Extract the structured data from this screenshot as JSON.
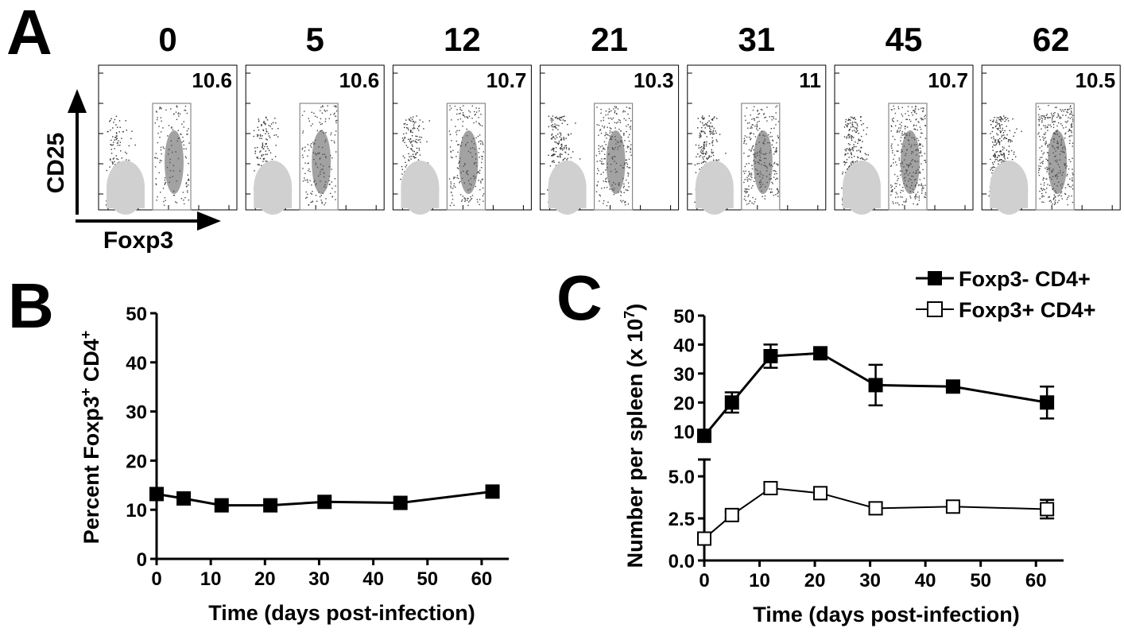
{
  "panel_a": {
    "label": "A",
    "timepoints": [
      "0",
      "5",
      "12",
      "21",
      "31",
      "45",
      "62"
    ],
    "gate_percents": [
      "10.6",
      "10.6",
      "10.7",
      "10.3",
      "11",
      "10.7",
      "10.5"
    ],
    "y_axis_label": "CD25",
    "x_axis_label": "Foxp3"
  },
  "panel_b": {
    "label": "B"
  },
  "panel_c": {
    "label": "C"
  },
  "chart_data": [
    {
      "type": "line",
      "panel": "B",
      "xlabel": "Time (days post-infection)",
      "ylabel_text": "Percent Foxp3",
      "ylabel_sup1": "+",
      "ylabel_text2": " CD4",
      "ylabel_sup2": "+",
      "xlim": [
        0,
        65
      ],
      "ylim": [
        0,
        50
      ],
      "xticks": [
        0,
        10,
        20,
        30,
        40,
        50,
        60
      ],
      "yticks": [
        0,
        10,
        20,
        30,
        40,
        50
      ],
      "series": [
        {
          "marker": "filled-square",
          "x": [
            0,
            5,
            12,
            21,
            31,
            45,
            62
          ],
          "y": [
            13.2,
            12.3,
            10.9,
            10.9,
            11.6,
            11.4,
            13.7
          ]
        }
      ]
    },
    {
      "type": "line",
      "panel": "C",
      "xlabel": "Time (days post-infection)",
      "ylabel_text": "Number per spleen (x 10",
      "ylabel_sup": "7",
      "ylabel_close": ")",
      "xlim": [
        0,
        65
      ],
      "xticks": [
        0,
        10,
        20,
        30,
        40,
        50,
        60
      ],
      "broken_y_axis": true,
      "upper_ylim": [
        8,
        50
      ],
      "upper_yticks": [
        "10",
        "20",
        "30",
        "40",
        "50"
      ],
      "lower_ylim": [
        0,
        6
      ],
      "lower_yticks": [
        "0.0",
        "2.5",
        "5.0"
      ],
      "legend_position": "top-right",
      "series": [
        {
          "name": "Foxp3- CD4+",
          "marker": "filled-square",
          "axis_segment": "upper",
          "x": [
            0,
            5,
            12,
            21,
            31,
            45,
            62
          ],
          "y": [
            8.5,
            20,
            36,
            37,
            26,
            25.5,
            20
          ],
          "err": [
            0,
            3.5,
            4,
            1.5,
            7,
            1,
            5.5
          ]
        },
        {
          "name": "Foxp3+ CD4+",
          "marker": "open-square",
          "axis_segment": "lower",
          "x": [
            0,
            5,
            12,
            21,
            31,
            45,
            62
          ],
          "y": [
            1.3,
            2.7,
            4.3,
            4.0,
            3.1,
            3.2,
            3.05
          ],
          "err": [
            0.3,
            0.2,
            0.25,
            0.35,
            0.35,
            0.2,
            0.55
          ]
        }
      ]
    }
  ]
}
